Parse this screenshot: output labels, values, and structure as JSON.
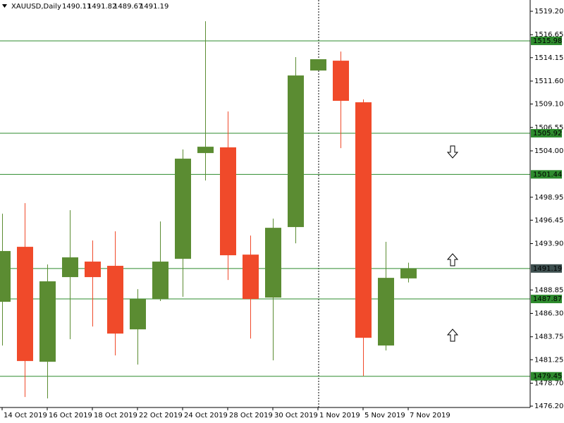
{
  "chart_data": {
    "type": "candlestick",
    "title": "XAUUSD,Daily",
    "categories": [
      "14 Oct 2019",
      null,
      "16 Oct 2019",
      null,
      "18 Oct 2019",
      null,
      "22 Oct 2019",
      null,
      "24 Oct 2019",
      null,
      "28 Oct 2019",
      null,
      "30 Oct 2019",
      null,
      "1 Nov 2019",
      null,
      "5 Nov 2019",
      null,
      "7 Nov 2019"
    ],
    "open": [
      1487.56,
      1493.55,
      1481.03,
      1490.25,
      1491.94,
      1491.48,
      1484.56,
      1487.87,
      1492.24,
      1503.76,
      1504.38,
      1492.7,
      1488.02,
      1495.7,
      1512.75,
      1513.82,
      1509.29,
      1482.8,
      1490.11
    ],
    "high": [
      1497.16,
      1498.31,
      1491.63,
      1497.54,
      1494.24,
      1495.24,
      1488.94,
      1496.31,
      1504.15,
      1518.12,
      1508.29,
      1494.78,
      1496.62,
      1514.21,
      1513.98,
      1514.82,
      1509.6,
      1494.09,
      1491.82
    ],
    "low": [
      1482.8,
      1477.19,
      1477.04,
      1483.49,
      1484.87,
      1481.72,
      1480.72,
      1487.64,
      1488.1,
      1500.77,
      1489.94,
      1483.56,
      1481.18,
      1493.93,
      1512.75,
      1504.3,
      1479.49,
      1482.26,
      1489.67
    ],
    "close": [
      1493.09,
      1481.11,
      1489.79,
      1492.4,
      1490.25,
      1484.1,
      1487.87,
      1491.94,
      1503.15,
      1504.45,
      1492.63,
      1487.87,
      1495.62,
      1512.21,
      1513.98,
      1509.45,
      1483.64,
      1490.17,
      1491.19
    ],
    "up_color": "#5b8c32",
    "down_color": "#f04a2a",
    "ylim": [
      1476.05,
      1520.43
    ],
    "yticks": [
      {
        "value": 1519.2,
        "label": "1519.20"
      },
      {
        "value": 1516.65,
        "label": "1516.65"
      },
      {
        "value": 1514.15,
        "label": "1514.15"
      },
      {
        "value": 1511.6,
        "label": "1511.60"
      },
      {
        "value": 1509.1,
        "label": "1509.10"
      },
      {
        "value": 1506.55,
        "label": "1506.55"
      },
      {
        "value": 1504,
        "label": "1504.00"
      },
      {
        "value": 1498.95,
        "label": "1498.95"
      },
      {
        "value": 1496.45,
        "label": "1496.45"
      },
      {
        "value": 1493.9,
        "label": "1493.90"
      },
      {
        "value": 1488.85,
        "label": "1488.85"
      },
      {
        "value": 1486.3,
        "label": "1486.30"
      },
      {
        "value": 1483.75,
        "label": "1483.75"
      },
      {
        "value": 1481.25,
        "label": "1481.25"
      },
      {
        "value": 1478.7,
        "label": "1478.70"
      },
      {
        "value": 1476.2,
        "label": "1476.20"
      }
    ],
    "grid": false,
    "level_color": "#2e8b2e",
    "levels": [
      {
        "value": 1515.98,
        "color": "#2e8b2e"
      },
      {
        "value": 1505.92,
        "color": "#2e8b2e"
      },
      {
        "value": 1501.44,
        "color": "#2e8b2e"
      },
      {
        "value": 1491.19,
        "color": "#3d4f4f"
      },
      {
        "value": 1487.87,
        "color": "#2e8b2e"
      },
      {
        "value": 1479.45,
        "color": "#2e8b2e"
      }
    ]
  }
}
